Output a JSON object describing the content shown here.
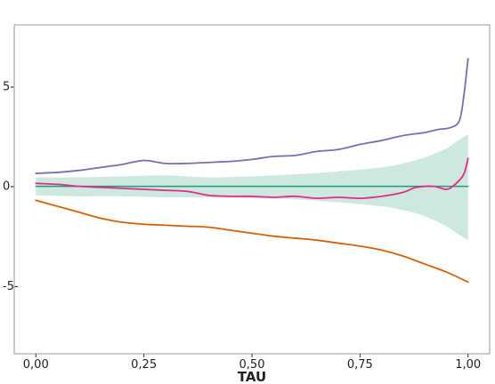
{
  "chart_data": {
    "type": "line",
    "title": "",
    "xlabel": "TAU",
    "ylabel": "",
    "xlim": [
      -0.05,
      1.05
    ],
    "ylim": [
      -8.4,
      8.1
    ],
    "x_ticks": [
      0.0,
      0.25,
      0.5,
      0.75,
      1.0
    ],
    "x_tick_labels": [
      "0,00",
      "0,25",
      "0,50",
      "0,75",
      "1,00"
    ],
    "y_ticks": [
      5,
      0,
      -5
    ],
    "y_tick_labels": [
      "5-",
      "0-",
      "-5-"
    ],
    "grid": false,
    "legend": "none",
    "band": {
      "color": "#cce8df",
      "x": [
        0.0,
        0.1,
        0.2,
        0.3,
        0.4,
        0.5,
        0.6,
        0.7,
        0.8,
        0.85,
        0.9,
        0.95,
        0.97,
        1.0
      ],
      "upper": [
        0.45,
        0.45,
        0.5,
        0.55,
        0.45,
        0.5,
        0.6,
        0.75,
        0.95,
        1.15,
        1.45,
        1.9,
        2.2,
        2.6
      ],
      "lower": [
        -0.45,
        -0.5,
        -0.5,
        -0.55,
        -0.55,
        -0.6,
        -0.65,
        -0.8,
        -1.0,
        -1.2,
        -1.5,
        -2.0,
        -2.3,
        -2.7
      ]
    },
    "series": [
      {
        "color": "#1a9e77",
        "x": [
          0.0,
          1.0
        ],
        "values": [
          0.0,
          0.0
        ]
      },
      {
        "color": "#7570b3",
        "x": [
          0.0,
          0.05,
          0.1,
          0.15,
          0.2,
          0.25,
          0.3,
          0.35,
          0.4,
          0.45,
          0.5,
          0.55,
          0.6,
          0.65,
          0.7,
          0.75,
          0.8,
          0.85,
          0.9,
          0.93,
          0.96,
          0.98,
          0.99,
          1.0
        ],
        "values": [
          0.65,
          0.7,
          0.8,
          0.95,
          1.1,
          1.3,
          1.15,
          1.15,
          1.2,
          1.25,
          1.35,
          1.5,
          1.55,
          1.75,
          1.85,
          2.1,
          2.3,
          2.55,
          2.7,
          2.85,
          2.95,
          3.3,
          4.5,
          6.4
        ]
      },
      {
        "color": "#e7298a",
        "x": [
          0.0,
          0.05,
          0.1,
          0.15,
          0.2,
          0.25,
          0.3,
          0.35,
          0.4,
          0.45,
          0.5,
          0.55,
          0.6,
          0.65,
          0.7,
          0.75,
          0.8,
          0.85,
          0.88,
          0.92,
          0.95,
          0.97,
          0.99,
          1.0
        ],
        "values": [
          0.15,
          0.1,
          0.0,
          -0.05,
          -0.1,
          -0.15,
          -0.2,
          -0.25,
          -0.45,
          -0.5,
          -0.5,
          -0.55,
          -0.5,
          -0.6,
          -0.55,
          -0.6,
          -0.5,
          -0.3,
          -0.05,
          0.0,
          -0.15,
          0.1,
          0.6,
          1.4
        ]
      },
      {
        "color": "#d95f02",
        "x": [
          0.0,
          0.05,
          0.1,
          0.15,
          0.2,
          0.25,
          0.3,
          0.35,
          0.4,
          0.45,
          0.5,
          0.55,
          0.6,
          0.65,
          0.7,
          0.75,
          0.8,
          0.85,
          0.9,
          0.95,
          1.0
        ],
        "values": [
          -0.7,
          -1.0,
          -1.3,
          -1.6,
          -1.8,
          -1.9,
          -1.95,
          -2.0,
          -2.05,
          -2.2,
          -2.35,
          -2.5,
          -2.6,
          -2.7,
          -2.85,
          -3.0,
          -3.2,
          -3.5,
          -3.9,
          -4.3,
          -4.8
        ]
      }
    ]
  }
}
